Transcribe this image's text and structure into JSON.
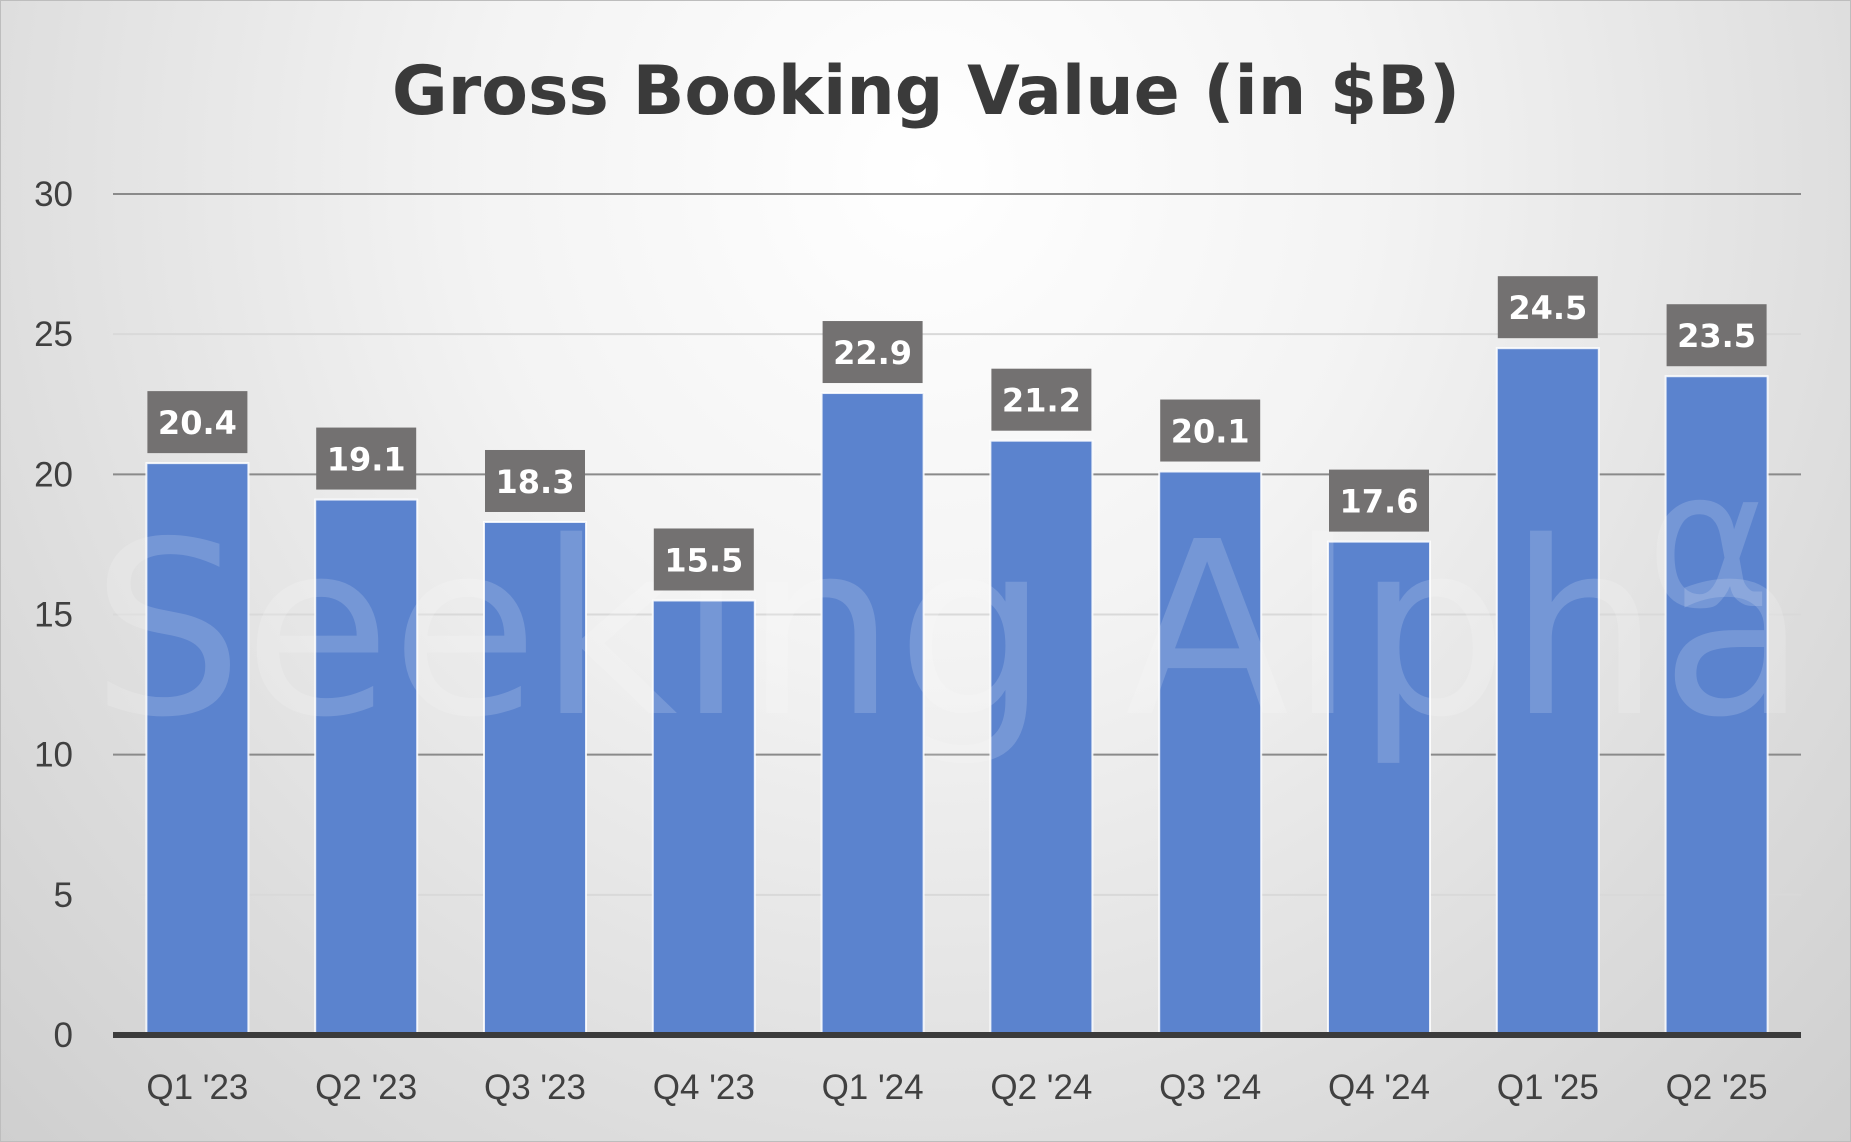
{
  "chart_data": {
    "type": "bar",
    "title": "Gross Booking Value (in $B)",
    "xlabel": "",
    "ylabel": "",
    "categories": [
      "Q1 '23",
      "Q2 '23",
      "Q3 '23",
      "Q4 '23",
      "Q1 '24",
      "Q2 '24",
      "Q3 '24",
      "Q4 '24",
      "Q1 '25",
      "Q2 '25"
    ],
    "values": [
      20.4,
      19.1,
      18.3,
      15.5,
      22.9,
      21.2,
      20.1,
      17.6,
      24.5,
      23.5
    ],
    "data_labels": [
      "20.4",
      "19.1",
      "18.3",
      "15.5",
      "22.9",
      "21.2",
      "20.1",
      "17.6",
      "24.5",
      "23.5"
    ],
    "ylim": [
      0,
      30
    ],
    "yticks": [
      0,
      5,
      10,
      15,
      20,
      25,
      30
    ],
    "grid": true,
    "legend": "none",
    "colors": {
      "bar": "#5b83ce",
      "label_box": "#737171",
      "label_text": "#ffffff",
      "baseline": "#3b3b3b",
      "gridline": "#d6d6d6"
    }
  },
  "watermark": {
    "text": "Seeking Alpha",
    "symbol": "α"
  }
}
